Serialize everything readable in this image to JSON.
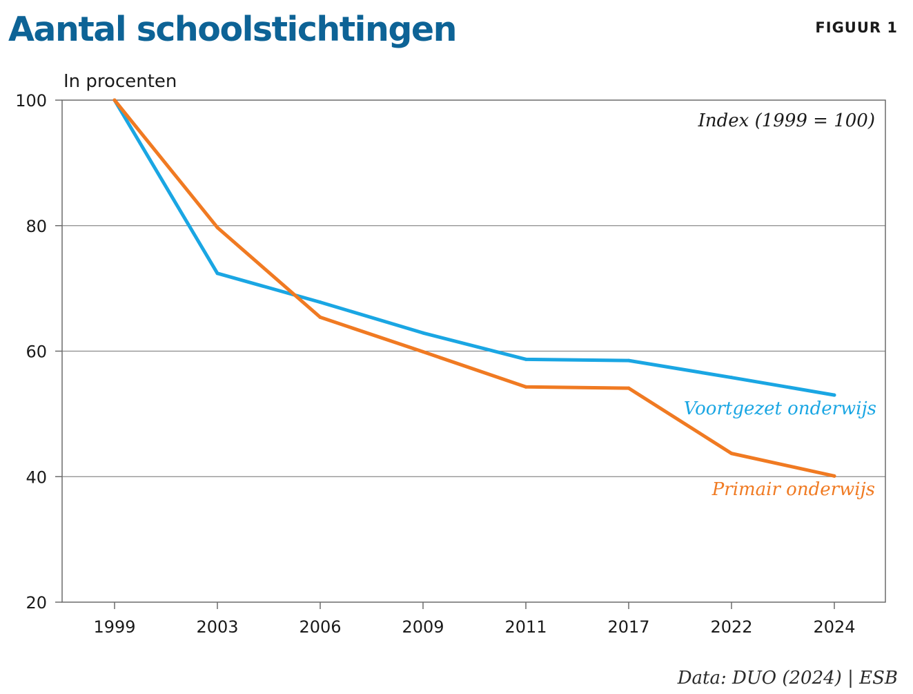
{
  "header": {
    "title": "Aantal schoolstichtingen",
    "figure_label": "FIGUUR 1"
  },
  "footer": {
    "source": "Data: DUO (2024) | ESB"
  },
  "colors": {
    "title": "#0d6396",
    "primair": "#f07a22",
    "voortgezet": "#1aa6e3",
    "grid": "#8a8a8a",
    "frame": "#6a6a6a",
    "text": "#1a1a1a"
  },
  "chart_data": {
    "type": "line",
    "title": "Aantal schoolstichtingen",
    "ylabel": "In procenten",
    "annotation": "Index (1999 = 100)",
    "categories": [
      "1999",
      "2003",
      "2006",
      "2009",
      "2011",
      "2017",
      "2022",
      "2024"
    ],
    "ylim": [
      20,
      100
    ],
    "yticks": [
      20,
      40,
      60,
      80,
      100
    ],
    "grid": true,
    "series": [
      {
        "name": "Voortgezet onderwijs",
        "color": "#1aa6e3",
        "values": [
          100,
          72.4,
          67.8,
          62.9,
          58.7,
          58.5,
          55.8,
          53.0
        ]
      },
      {
        "name": "Primair onderwijs",
        "color": "#f07a22",
        "values": [
          100,
          79.7,
          65.4,
          59.9,
          54.3,
          54.1,
          43.7,
          40.1
        ]
      }
    ]
  }
}
